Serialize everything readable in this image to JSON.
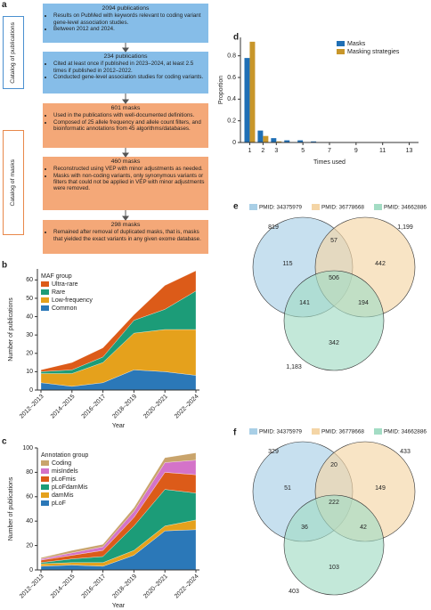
{
  "panel_a": {
    "panel": "a",
    "side_labels": [
      "Catalog of publications",
      "Catalog of masks"
    ],
    "boxes": [
      {
        "title": "2094 publications",
        "items": [
          "Results on PubMed with keywords relevant to coding variant gene-level association studies.",
          "Between 2012 and 2024."
        ]
      },
      {
        "title": "234 publications",
        "items": [
          "Cited at least once if published in 2023–2024, at least 2.5 times if published in 2012–2022.",
          "Conducted gene-level association studies for coding variants."
        ]
      },
      {
        "title": "601 masks",
        "items": [
          "Used in the publications with well-documented definitions.",
          "Composed of 25 allele frequency and allele count filters, and bioinformatic annotations from 45 algorithms/databases."
        ]
      },
      {
        "title": "460 masks",
        "items": [
          "Reconstructed using VEP with minor adjustments as needed.",
          "Masks with non-coding variants, only synonymous variants or filters that could not be applied in VEP with minor adjustments were removed."
        ]
      },
      {
        "title": "298 masks",
        "items": [
          "Remained after removal of duplicated masks, that is, masks that yielded the exact variants in any given exome database."
        ]
      }
    ]
  },
  "chart_data": [
    {
      "type": "area",
      "panel": "b",
      "legend_title": "MAF group",
      "x_label": "Year",
      "y_label": "Number of publications",
      "categories": [
        "2012–2013",
        "2014–2015",
        "2016–2017",
        "2018–2019",
        "2020–2021",
        "2022–2024"
      ],
      "series": [
        {
          "name": "Common",
          "color": "#2b78b8",
          "values": [
            4,
            2,
            4,
            11,
            10,
            8
          ]
        },
        {
          "name": "Low-frequency",
          "color": "#e5a11c",
          "values": [
            5,
            7,
            11,
            20,
            23,
            25
          ]
        },
        {
          "name": "Rare",
          "color": "#1c9c78",
          "values": [
            1,
            2,
            3,
            7,
            11,
            21
          ]
        },
        {
          "name": "Ultra-rare",
          "color": "#dc5b19",
          "values": [
            1,
            4,
            5,
            3,
            13,
            11
          ]
        }
      ],
      "ylim": [
        0,
        66
      ],
      "yticks": [
        0,
        10,
        20,
        30,
        40,
        50,
        60
      ]
    },
    {
      "type": "area",
      "panel": "c",
      "legend_title": "Annotation group",
      "x_label": "Year",
      "y_label": "Number of publications",
      "categories": [
        "2012–2013",
        "2014–2015",
        "2016–2017",
        "2018–2019",
        "2020–2021",
        "2022–2024"
      ],
      "series": [
        {
          "name": "pLoF",
          "color": "#2b78b8",
          "values": [
            3,
            4,
            3,
            12,
            32,
            33
          ]
        },
        {
          "name": "damMis",
          "color": "#e5a11c",
          "values": [
            2,
            2,
            3,
            4,
            4,
            8
          ]
        },
        {
          "name": "pLoFdamMis",
          "color": "#1c9c78",
          "values": [
            1,
            3,
            5,
            20,
            30,
            22
          ]
        },
        {
          "name": "pLoFmis",
          "color": "#dc5b19",
          "values": [
            2,
            3,
            5,
            7,
            14,
            15
          ]
        },
        {
          "name": "misIndels",
          "color": "#d473c9",
          "values": [
            1,
            2,
            3,
            5,
            8,
            12
          ]
        },
        {
          "name": "Coding",
          "color": "#c9a46c",
          "values": [
            1,
            2,
            2,
            3,
            4,
            6
          ]
        }
      ],
      "ylim": [
        0,
        100
      ],
      "yticks": [
        0,
        20,
        40,
        60,
        80,
        100
      ]
    },
    {
      "type": "bar",
      "panel": "d",
      "x_label": "Times used",
      "y_label": "Proportion",
      "x": [
        1,
        2,
        3,
        4,
        5,
        6
      ],
      "series": [
        {
          "name": "Masks",
          "color": "#1f6fb5",
          "values": [
            0.78,
            0.11,
            0.04,
            0.02,
            0.02,
            0.01
          ]
        },
        {
          "name": "Masking strategies",
          "color": "#c8962a",
          "values": [
            0.93,
            0.06,
            0.01,
            0,
            0,
            0
          ]
        }
      ],
      "xlim": [
        0.3,
        13.7
      ],
      "xticks": [
        1,
        2,
        3,
        5,
        7,
        9,
        11,
        13
      ],
      "ylim": [
        0,
        0.97
      ],
      "yticks": [
        0,
        0.2,
        0.4,
        0.6,
        0.8
      ]
    },
    {
      "type": "venn",
      "panel": "e",
      "sets": [
        {
          "name": "PMID: 34375979",
          "color": "#a9cfe6"
        },
        {
          "name": "PMID: 36778668",
          "color": "#f4d5a6"
        },
        {
          "name": "PMID: 34662886",
          "color": "#a3dcc4"
        }
      ],
      "values": [
        819,
        1199,
        1183
      ],
      "value_labels": [
        "819",
        "1,199",
        "1,183"
      ],
      "regions": {
        "1": 115,
        "2": 442,
        "3": 342,
        "1_2": 57,
        "1_3": 141,
        "2_3": 194,
        "1_2_3": 506
      }
    },
    {
      "type": "venn",
      "panel": "f",
      "sets": [
        {
          "name": "PMID: 34375979",
          "color": "#a9cfe6"
        },
        {
          "name": "PMID: 36778668",
          "color": "#f4d5a6"
        },
        {
          "name": "PMID: 34662886",
          "color": "#a3dcc4"
        }
      ],
      "values": [
        329,
        433,
        403
      ],
      "regions": {
        "1": 51,
        "2": 149,
        "3": 103,
        "1_2": 20,
        "1_3": 36,
        "2_3": 42,
        "1_2_3": 222
      }
    }
  ]
}
